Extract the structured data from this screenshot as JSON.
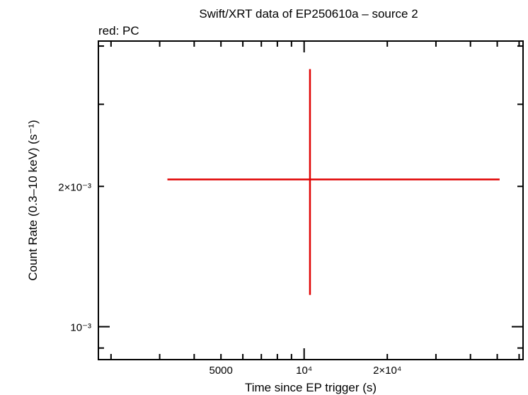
{
  "chart_data": {
    "type": "scatter",
    "title": "Swift/XRT data of EP250610a – source 2",
    "subtitle": "red: PC",
    "xlabel": "Time since EP trigger (s)",
    "ylabel": "Count Rate (0.3–10 keV) (s⁻¹)",
    "xscale": "log",
    "yscale": "log",
    "xlim": [
      1800,
      62000
    ],
    "ylim": [
      0.00085,
      0.0041
    ],
    "x_ticks": [
      {
        "value": 5000,
        "label": "5000"
      },
      {
        "value": 10000,
        "label": "10⁴"
      },
      {
        "value": 20000,
        "label": "2×10⁴"
      }
    ],
    "y_ticks": [
      {
        "value": 0.001,
        "label": "10⁻³"
      },
      {
        "value": 0.002,
        "label": "2×10⁻³"
      }
    ],
    "series": [
      {
        "color": "#e00000",
        "points": [
          {
            "x": 10500,
            "x_lo": 3200,
            "x_hi": 51000,
            "y": 0.00207,
            "y_lo": 0.00117,
            "y_hi": 0.00357
          }
        ]
      }
    ],
    "grid": false,
    "legend": "none"
  }
}
